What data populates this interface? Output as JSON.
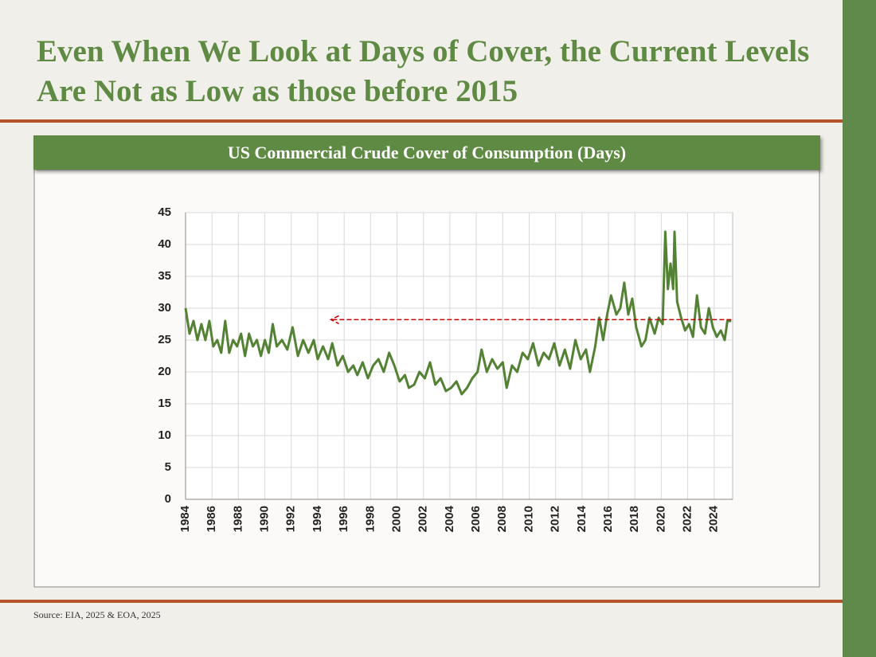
{
  "slide": {
    "title": "Even When We Look at Days of Cover, the Current Levels Are Not as Low as those before 2015",
    "source": "Source: EIA, 2025 & EOA, 2025"
  },
  "chart_data": {
    "type": "line",
    "title": "US Commercial Crude Cover of Consumption (Days)",
    "series": [
      {
        "color": "#548235",
        "x": [
          1984.0,
          1984.3,
          1984.6,
          1984.9,
          1985.2,
          1985.5,
          1985.8,
          1986.1,
          1986.4,
          1986.7,
          1987.0,
          1987.3,
          1987.6,
          1987.9,
          1988.2,
          1988.5,
          1988.8,
          1989.1,
          1989.4,
          1989.7,
          1990.0,
          1990.3,
          1990.6,
          1990.9,
          1991.3,
          1991.7,
          1992.1,
          1992.5,
          1992.9,
          1993.3,
          1993.7,
          1994.0,
          1994.4,
          1994.8,
          1995.1,
          1995.5,
          1995.9,
          1996.3,
          1996.7,
          1997.0,
          1997.4,
          1997.8,
          1998.2,
          1998.6,
          1999.0,
          1999.4,
          1999.8,
          2000.2,
          2000.6,
          2000.9,
          2001.3,
          2001.7,
          2002.1,
          2002.5,
          2002.9,
          2003.3,
          2003.7,
          2004.1,
          2004.5,
          2004.9,
          2005.3,
          2005.7,
          2006.1,
          2006.4,
          2006.8,
          2007.2,
          2007.6,
          2008.0,
          2008.3,
          2008.7,
          2009.1,
          2009.5,
          2009.9,
          2010.3,
          2010.7,
          2011.1,
          2011.5,
          2011.9,
          2012.3,
          2012.7,
          2013.1,
          2013.5,
          2013.9,
          2014.3,
          2014.6,
          2015.0,
          2015.3,
          2015.6,
          2015.9,
          2016.2,
          2016.6,
          2016.9,
          2017.2,
          2017.5,
          2017.8,
          2018.1,
          2018.5,
          2018.8,
          2019.1,
          2019.5,
          2019.8,
          2020.1,
          2020.3,
          2020.5,
          2020.7,
          2020.9,
          2021.0,
          2021.2,
          2021.5,
          2021.8,
          2022.1,
          2022.4,
          2022.7,
          2023.0,
          2023.3,
          2023.6,
          2023.9,
          2024.2,
          2024.5,
          2024.8,
          2025.0,
          2025.3
        ],
        "values": [
          30,
          26,
          28,
          25,
          27.5,
          25,
          28,
          24,
          25,
          23,
          28,
          23,
          25,
          24,
          26,
          22.5,
          26,
          24,
          25,
          22.5,
          25,
          23,
          27.5,
          24,
          25,
          23.5,
          27,
          22.5,
          25,
          23,
          25,
          22,
          24,
          22,
          24.5,
          21,
          22.5,
          20,
          21,
          19.5,
          21.5,
          19,
          21,
          22,
          20,
          23,
          21,
          18.5,
          19.5,
          17.5,
          18,
          20,
          19,
          21.5,
          18,
          19,
          17,
          17.5,
          18.5,
          16.5,
          17.5,
          19,
          20,
          23.5,
          20,
          22,
          20.5,
          21.5,
          17.5,
          21,
          20,
          23,
          22,
          24.5,
          21,
          23,
          22,
          24.5,
          21,
          23.5,
          20.5,
          25,
          22,
          23.5,
          20,
          24,
          28.5,
          25,
          29,
          32,
          29,
          30,
          34,
          29,
          31.5,
          27,
          24,
          25,
          28.5,
          26,
          28.5,
          27.5,
          42,
          33,
          37,
          33,
          42,
          31,
          28.5,
          26.5,
          27.5,
          25.5,
          32,
          27,
          26,
          30,
          27,
          25.5,
          26.5,
          25,
          28,
          28
        ]
      }
    ],
    "arrow": {
      "y": 28.2,
      "x_from": 2025.3,
      "x_to": 1995
    },
    "xlim": [
      1984,
      2025.4
    ],
    "xticks": [
      1984,
      1986,
      1988,
      1990,
      1992,
      1994,
      1996,
      1998,
      2000,
      2002,
      2004,
      2006,
      2008,
      2010,
      2012,
      2014,
      2016,
      2018,
      2020,
      2022,
      2024
    ],
    "ylim": [
      0,
      45
    ],
    "yticks": [
      0,
      5,
      10,
      15,
      20,
      25,
      30,
      35,
      40,
      45
    ],
    "grid": true
  }
}
